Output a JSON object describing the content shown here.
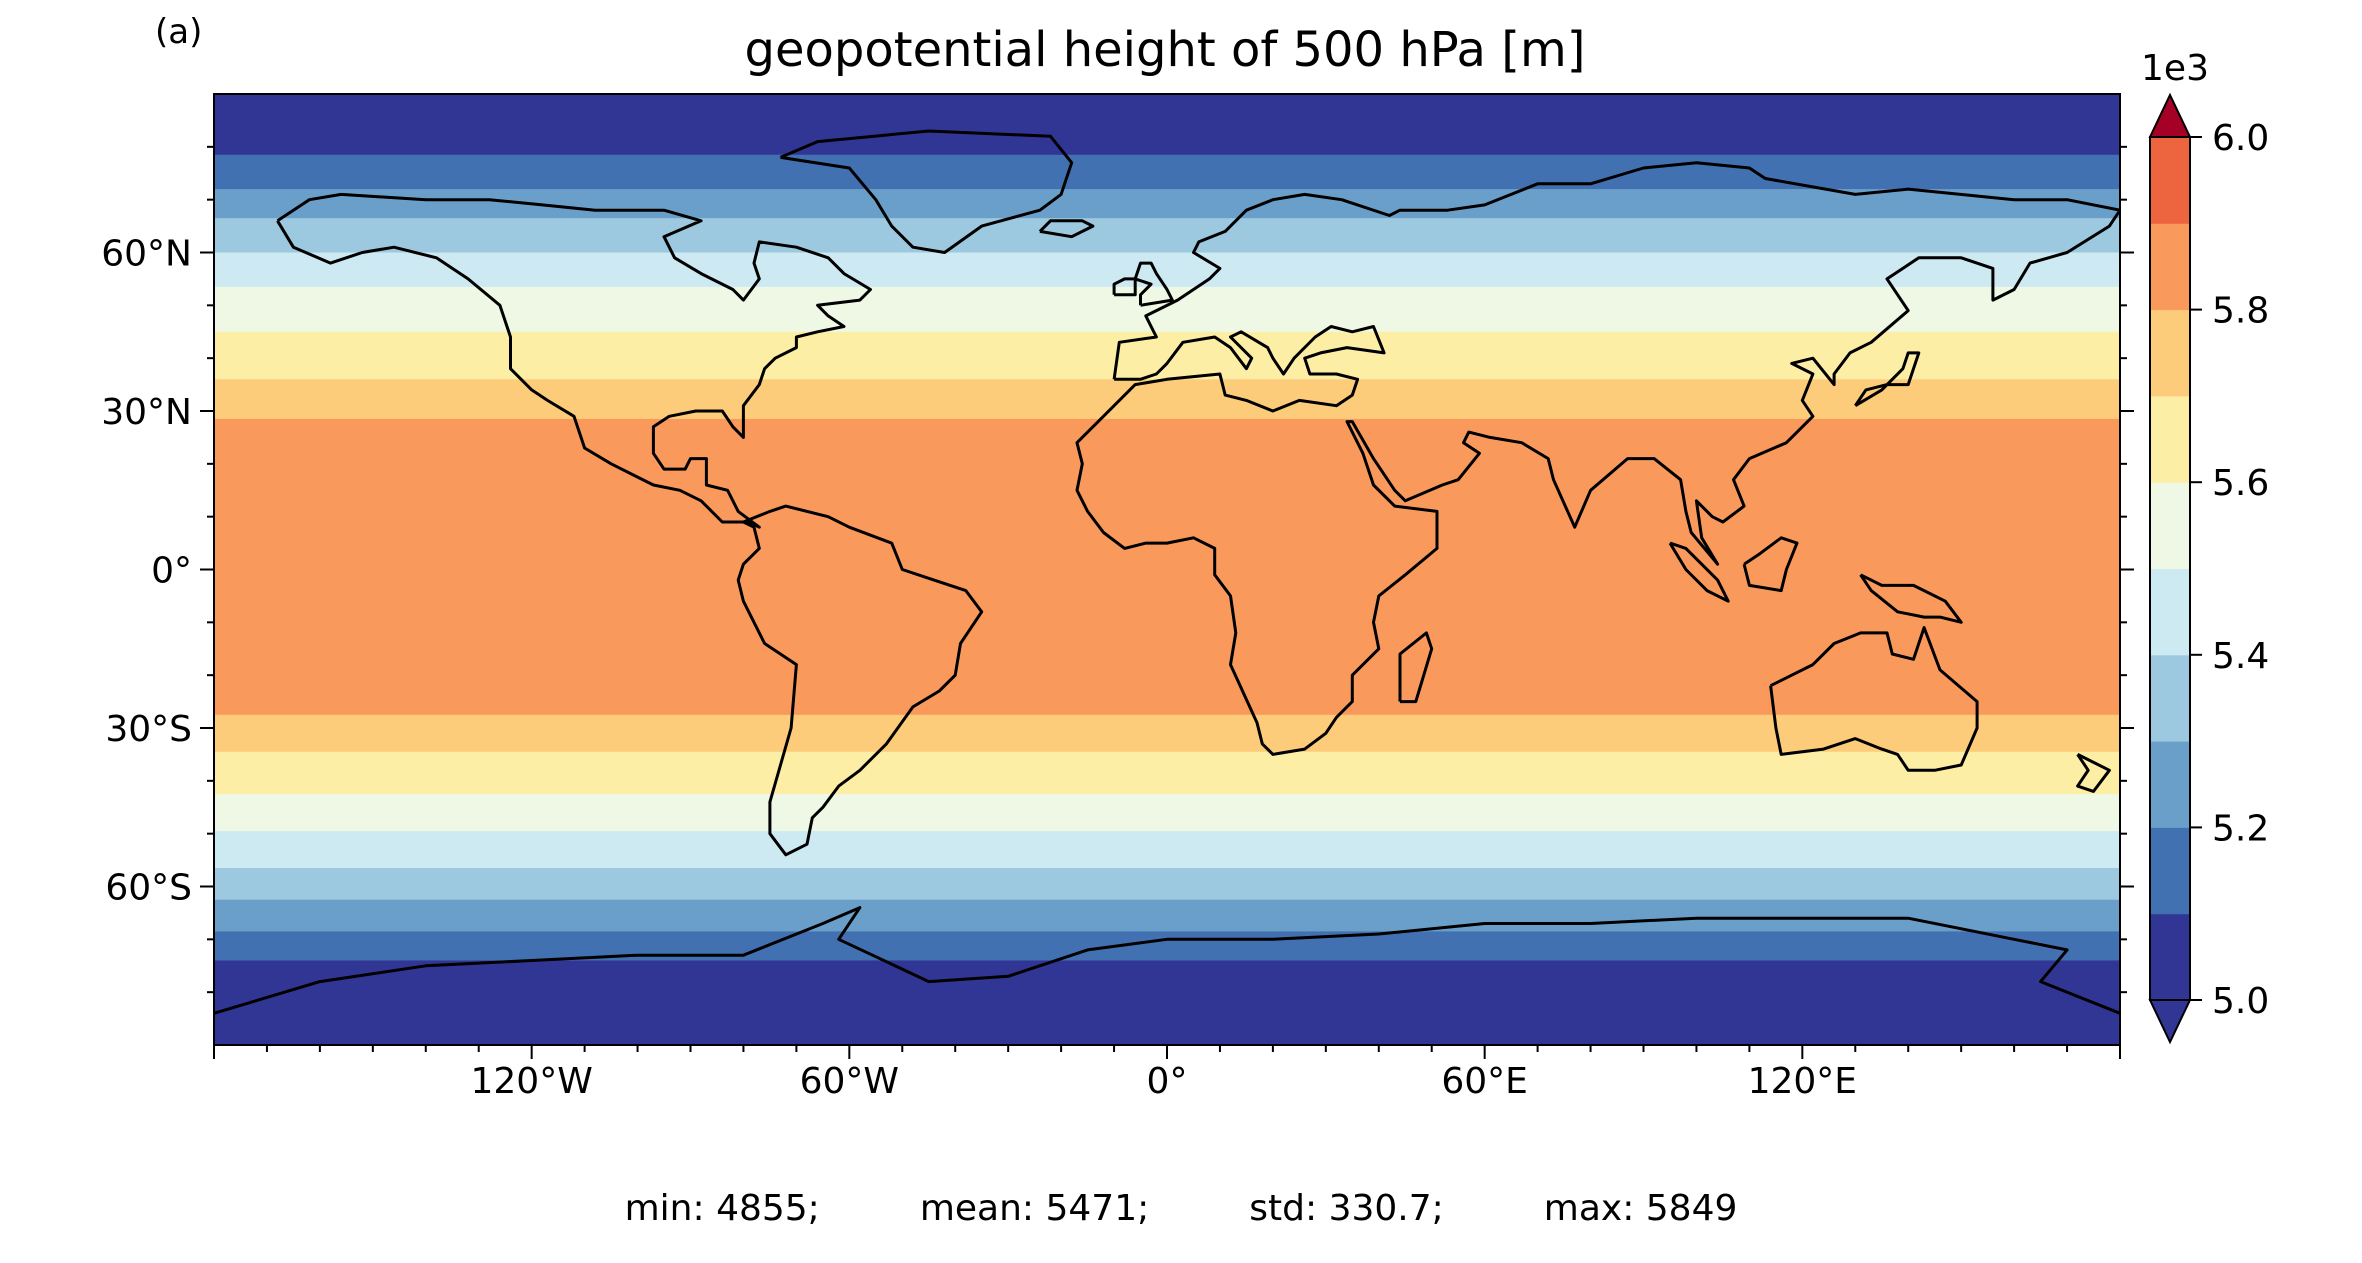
{
  "panel_label": "(a)",
  "title": "geopotential height of 500 hPa [m]",
  "stats": [
    {
      "label": "min:",
      "value": "4855;"
    },
    {
      "label": "mean:",
      "value": "5471;"
    },
    {
      "label": "std:",
      "value": "330.7;"
    },
    {
      "label": "max:",
      "value": "5849"
    }
  ],
  "chart_data": {
    "type": "heatmap",
    "projection": "PlateCarree",
    "title": "geopotential height of 500 hPa [m]",
    "xlabel": "",
    "ylabel": "",
    "xlim": [
      -180,
      180
    ],
    "ylim": [
      -90,
      90
    ],
    "xticks": [
      {
        "value": -120,
        "label": "120°W"
      },
      {
        "value": -60,
        "label": "60°W"
      },
      {
        "value": 0,
        "label": "0°"
      },
      {
        "value": 60,
        "label": "60°E"
      },
      {
        "value": 120,
        "label": "120°E"
      }
    ],
    "yticks": [
      {
        "value": 60,
        "label": "60°N"
      },
      {
        "value": 30,
        "label": "30°N"
      },
      {
        "value": 0,
        "label": "0°"
      },
      {
        "value": -30,
        "label": "30°S"
      },
      {
        "value": -60,
        "label": "60°S"
      }
    ],
    "colorbar": {
      "scale_label": "1e3",
      "min": 5.0,
      "max": 6.0,
      "extend": "both",
      "levels": [
        5.0,
        5.1,
        5.2,
        5.3,
        5.4,
        5.5,
        5.6,
        5.7,
        5.8,
        5.9,
        6.0
      ],
      "ticks": [
        {
          "value": 6.0,
          "label": "6.0"
        },
        {
          "value": 5.8,
          "label": "5.8"
        },
        {
          "value": 5.6,
          "label": "5.6"
        },
        {
          "value": 5.4,
          "label": "5.4"
        },
        {
          "value": 5.2,
          "label": "5.2"
        },
        {
          "value": 5.0,
          "label": "5.0"
        }
      ],
      "colors": [
        "#313695",
        "#4271b2",
        "#6a9fca",
        "#9dc9e0",
        "#cde9f2",
        "#eef8e5",
        "#fdeea5",
        "#fdcc7a",
        "#f99a5c",
        "#ed653f",
        "#d63128"
      ],
      "under_color": "#313695",
      "over_color": "#a50026"
    },
    "zonal_profile": [
      {
        "lat": 90,
        "value": 4.95
      },
      {
        "lat": 82,
        "value": 5.05
      },
      {
        "lat": 76,
        "value": 5.13
      },
      {
        "lat": 71,
        "value": 5.22
      },
      {
        "lat": 66,
        "value": 5.31
      },
      {
        "lat": 61,
        "value": 5.38
      },
      {
        "lat": 57,
        "value": 5.45
      },
      {
        "lat": 52,
        "value": 5.52
      },
      {
        "lat": 46,
        "value": 5.59
      },
      {
        "lat": 40,
        "value": 5.66
      },
      {
        "lat": 33,
        "value": 5.73
      },
      {
        "lat": 27,
        "value": 5.82
      },
      {
        "lat": 0,
        "value": 5.86
      },
      {
        "lat": -26,
        "value": 5.82
      },
      {
        "lat": -32,
        "value": 5.73
      },
      {
        "lat": -38,
        "value": 5.66
      },
      {
        "lat": -44,
        "value": 5.58
      },
      {
        "lat": -49,
        "value": 5.51
      },
      {
        "lat": -54,
        "value": 5.44
      },
      {
        "lat": -59,
        "value": 5.36
      },
      {
        "lat": -64,
        "value": 5.27
      },
      {
        "lat": -69,
        "value": 5.19
      },
      {
        "lat": -74,
        "value": 5.1
      },
      {
        "lat": -79,
        "value": 5.02
      },
      {
        "lat": -90,
        "value": 4.93
      }
    ],
    "coastline_color": "#000000"
  }
}
